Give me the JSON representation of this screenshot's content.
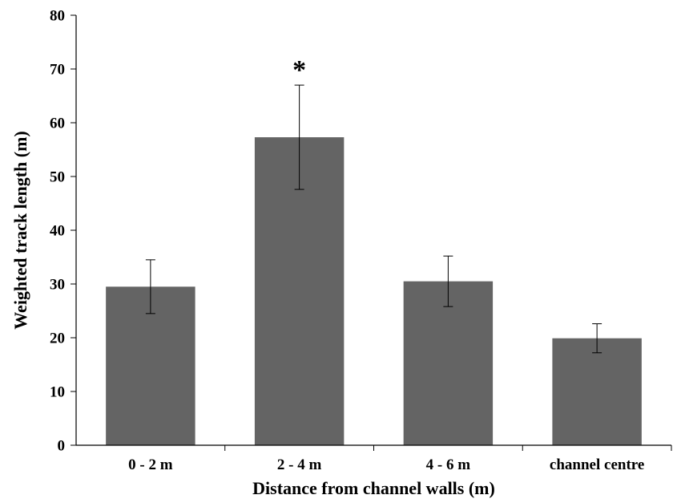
{
  "chart_data": {
    "type": "bar",
    "title": "",
    "xlabel": "Distance from channel walls (m)",
    "ylabel": "Weighted track length (m)",
    "ylim": [
      0,
      80
    ],
    "yticks": [
      "0",
      "10",
      "20",
      "30",
      "40",
      "50",
      "60",
      "70",
      "80"
    ],
    "categories": [
      "0 - 2 m",
      "2 - 4 m",
      "4 - 6 m",
      "channel centre"
    ],
    "values": [
      29.5,
      57.3,
      30.5,
      19.9
    ],
    "errors": [
      5.0,
      9.7,
      4.7,
      2.7
    ],
    "annotations": [
      {
        "category_index": 1,
        "text": "*"
      }
    ],
    "bar_color": "#646464",
    "grid": false,
    "legend": "none"
  }
}
